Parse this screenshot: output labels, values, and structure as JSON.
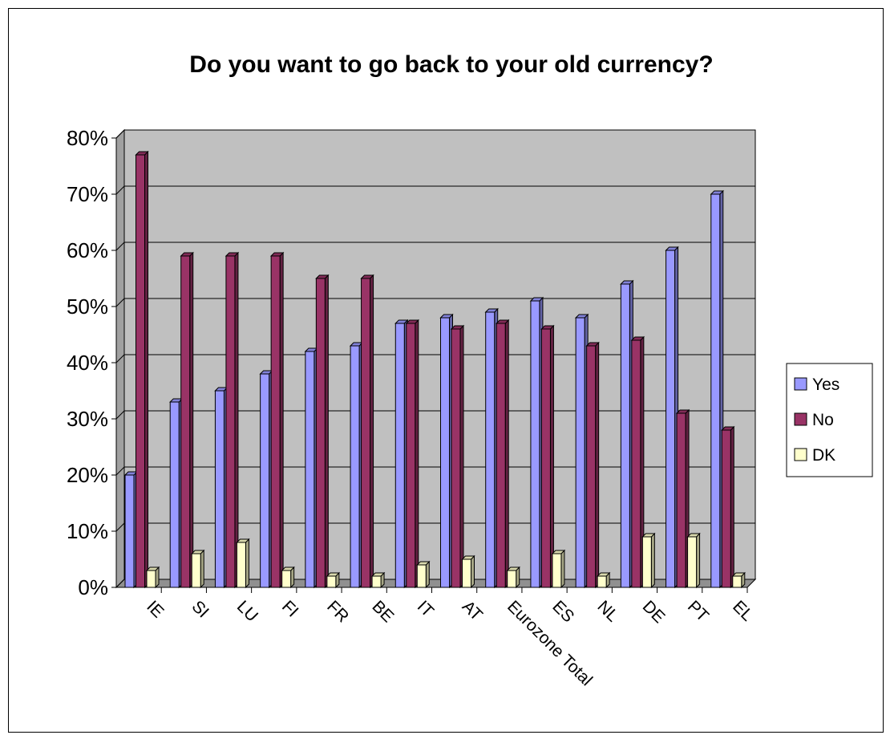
{
  "chart_data": {
    "type": "bar",
    "title": "Do you want to go back to your old currency?",
    "categories": [
      "IE",
      "SI",
      "LU",
      "FI",
      "FR",
      "BE",
      "IT",
      "AT",
      "Eurozone Total",
      "ES",
      "NL",
      "DE",
      "PT",
      "EL"
    ],
    "series": [
      {
        "name": "Yes",
        "color": "#9999ff",
        "values": [
          20,
          33,
          35,
          38,
          42,
          43,
          47,
          48,
          49,
          51,
          48,
          54,
          60,
          70
        ]
      },
      {
        "name": "No",
        "color": "#993366",
        "values": [
          77,
          59,
          59,
          59,
          55,
          55,
          47,
          46,
          47,
          46,
          43,
          44,
          31,
          28
        ]
      },
      {
        "name": "DK",
        "color": "#ffffcc",
        "values": [
          3,
          6,
          8,
          3,
          2,
          2,
          4,
          5,
          3,
          6,
          2,
          9,
          9,
          2
        ]
      }
    ],
    "yticks": [
      "0%",
      "10%",
      "20%",
      "30%",
      "40%",
      "50%",
      "60%",
      "70%",
      "80%"
    ],
    "ylim": [
      0,
      80
    ],
    "grid": true,
    "legend": "right",
    "wall_color": "#c0c0c0"
  }
}
